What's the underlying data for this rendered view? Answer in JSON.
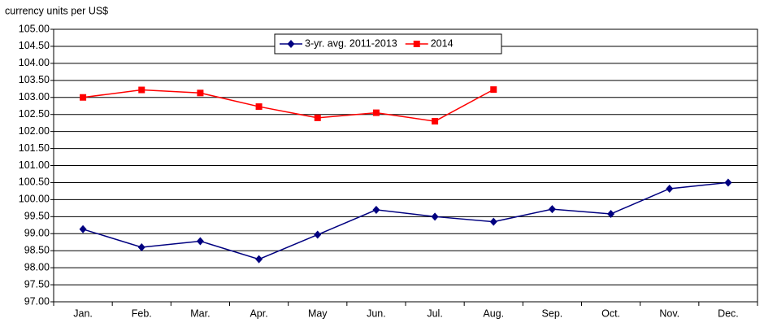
{
  "chart_data": {
    "type": "line",
    "ylabel": "currency units per US$",
    "categories": [
      "Jan.",
      "Feb.",
      "Mar.",
      "Apr.",
      "May",
      "Jun.",
      "Jul.",
      "Aug.",
      "Sep.",
      "Oct.",
      "Nov.",
      "Dec."
    ],
    "series": [
      {
        "name": "3-yr. avg. 2011-2013",
        "color": "#000080",
        "marker": "diamond",
        "values": [
          99.13,
          98.6,
          98.78,
          98.25,
          98.97,
          99.7,
          99.5,
          99.35,
          99.72,
          99.58,
          100.32,
          100.5
        ]
      },
      {
        "name": "2014",
        "color": "#ff0000",
        "marker": "square",
        "values": [
          103.0,
          103.22,
          103.13,
          102.73,
          102.4,
          102.55,
          102.3,
          103.23,
          null,
          null,
          null,
          null
        ]
      }
    ],
    "ylim": [
      97,
      105
    ],
    "yticks": [
      {
        "value": 97,
        "label": "97.00"
      },
      {
        "value": 97.5,
        "label": "97.50"
      },
      {
        "value": 98,
        "label": "98.00"
      },
      {
        "value": 98.5,
        "label": "98.50"
      },
      {
        "value": 99,
        "label": "99.00"
      },
      {
        "value": 99.5,
        "label": "99.50"
      },
      {
        "value": 100,
        "label": "100.00"
      },
      {
        "value": 100.5,
        "label": "100.50"
      },
      {
        "value": 101,
        "label": "101.00"
      },
      {
        "value": 101.5,
        "label": "101.50"
      },
      {
        "value": 102,
        "label": "102.00"
      },
      {
        "value": 102.5,
        "label": "102.50"
      },
      {
        "value": 103,
        "label": "103.00"
      },
      {
        "value": 103.5,
        "label": "103.50"
      },
      {
        "value": 104,
        "label": "104.00"
      },
      {
        "value": 104.5,
        "label": "104.50"
      },
      {
        "value": 105,
        "label": "105.00"
      }
    ],
    "grid": true
  }
}
